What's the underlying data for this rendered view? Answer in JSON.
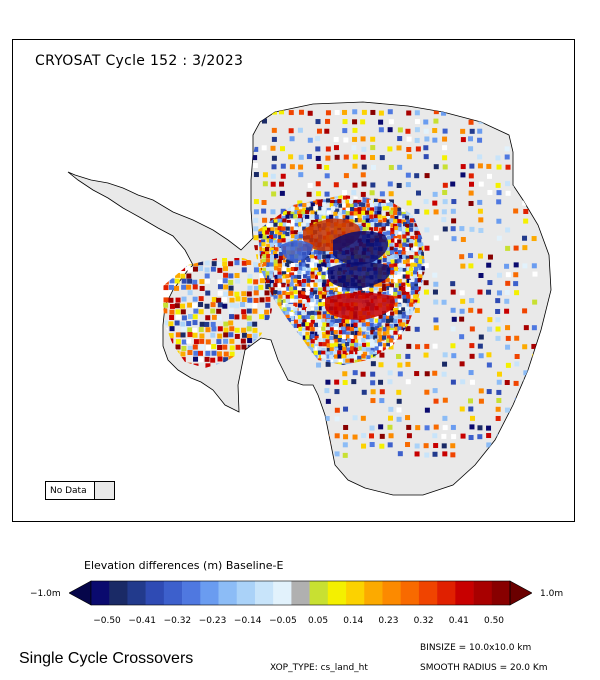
{
  "map": {
    "title": "CRYOSAT Cycle 152 : 3/2023",
    "no_data_label": "No Data",
    "no_data_color": "#e9e9e9"
  },
  "colorbar": {
    "title": "Elevation differences (m) Baseline-E",
    "left_end_label": "−1.0m",
    "right_end_label": "1.0m",
    "tick_labels": [
      "−0.50",
      "−0.41",
      "−0.32",
      "−0.23",
      "−0.14",
      "−0.05",
      "0.05",
      "0.14",
      "0.23",
      "0.32",
      "0.41",
      "0.50"
    ],
    "colors": [
      "#0a0a6e",
      "#1a2a66",
      "#223a8c",
      "#2f4bb4",
      "#3d60cc",
      "#4f78e0",
      "#6a9cf0",
      "#8cbcf6",
      "#aad2f8",
      "#c8e4fa",
      "#e2f2fc",
      "#b0b0b0",
      "#c8e032",
      "#f4f000",
      "#fcd200",
      "#fcaa00",
      "#fc8a00",
      "#f86a00",
      "#f04400",
      "#e02000",
      "#c80000",
      "#a80000",
      "#880000"
    ],
    "end_left_color": "#06064a",
    "end_right_color": "#6a0000"
  },
  "footer": {
    "method": "Single Cycle Crossovers",
    "binsize": "BINSIZE = 10.0x10.0 km",
    "xop_type": "XOP_TYPE: cs_land_ht",
    "smooth_radius": "SMOOTH RADIUS =  20.0 Km"
  }
}
